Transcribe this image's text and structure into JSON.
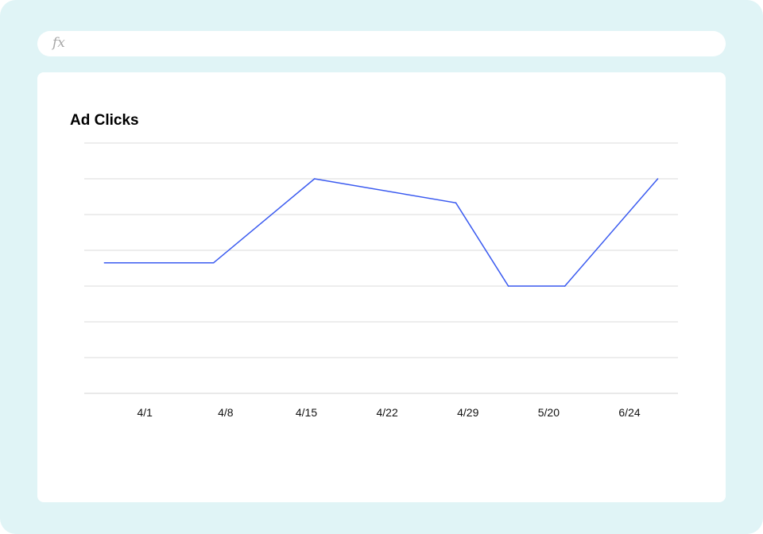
{
  "formula_bar": {
    "icon": "fx-icon",
    "label": "fx",
    "value": ""
  },
  "chart_data": {
    "type": "line",
    "title": "Ad Clicks",
    "xlabel": "",
    "ylabel": "",
    "categories": [
      "4/1",
      "4/8",
      "4/15",
      "4/22",
      "4/29",
      "5/20",
      "6/24"
    ],
    "x_label_positions": [
      0.5,
      1.5,
      2.5,
      3.5,
      4.5,
      5.5,
      6.5
    ],
    "series": [
      {
        "name": "",
        "color": "#3b5bf0",
        "points": [
          {
            "x": 0.0,
            "y": 3.65
          },
          {
            "x": 1.35,
            "y": 3.65
          },
          {
            "x": 2.6,
            "y": 6.0
          },
          {
            "x": 4.35,
            "y": 5.33
          },
          {
            "x": 5.0,
            "y": 3.0
          },
          {
            "x": 5.7,
            "y": 3.0
          },
          {
            "x": 6.85,
            "y": 6.0
          }
        ]
      }
    ],
    "xlim": [
      -0.25,
      7.1
    ],
    "ylim": [
      0,
      7
    ],
    "gridlines_y": [
      0,
      1,
      2,
      3,
      4,
      5,
      6,
      7
    ],
    "grid": true,
    "y_tick_labels_shown": false,
    "legend": "none"
  },
  "colors": {
    "background": "#e0f4f6",
    "panel": "#ffffff",
    "gridline": "#e2e2e2",
    "line": "#3b5bf0"
  }
}
